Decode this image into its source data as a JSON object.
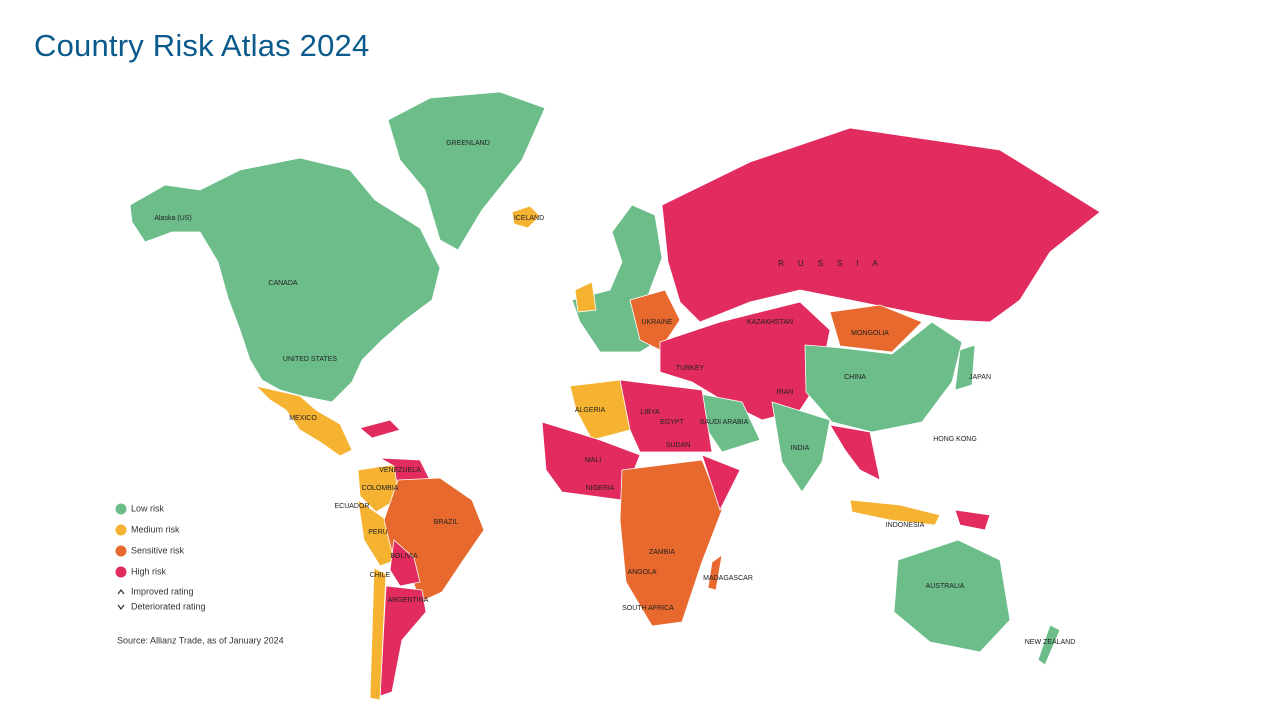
{
  "title": "Country Risk Atlas 2024",
  "legend": [
    {
      "label": "Low risk",
      "color": "#6cbd8a"
    },
    {
      "label": "Medium risk",
      "color": "#f6b332"
    },
    {
      "label": "Sensitive risk",
      "color": "#e8692e"
    },
    {
      "label": "High risk",
      "color": "#e22b5e"
    }
  ],
  "legend_notes": [
    "Improved rating",
    "Deteriorated rating"
  ],
  "source": "Source: Allianz Trade, as of January 2024",
  "labels": [
    "GREENLAND",
    "Alaska (US)",
    "CANADA",
    "UNITED STATES",
    "MEXICO",
    "COLOMBIA",
    "VENEZUELA",
    "ECUADOR",
    "PERU",
    "BRAZIL",
    "BOLIVIA",
    "CHILE",
    "ARGENTINA",
    "ICELAND",
    "RUSSIA",
    "KAZAKHSTAN",
    "MONGOLIA",
    "CHINA",
    "JAPAN",
    "INDIA",
    "IRAN",
    "TURKEY",
    "UKRAINE",
    "ALGERIA",
    "LIBYA",
    "EGYPT",
    "MALI",
    "SUDAN",
    "NIGERIA",
    "ANGOLA",
    "ZAMBIA",
    "SOUTH AFRICA",
    "SAUDI ARABIA",
    "AUSTRALIA",
    "INDONESIA",
    "NEW ZEALAND",
    "HONG KONG",
    "MADAGASCAR"
  ]
}
